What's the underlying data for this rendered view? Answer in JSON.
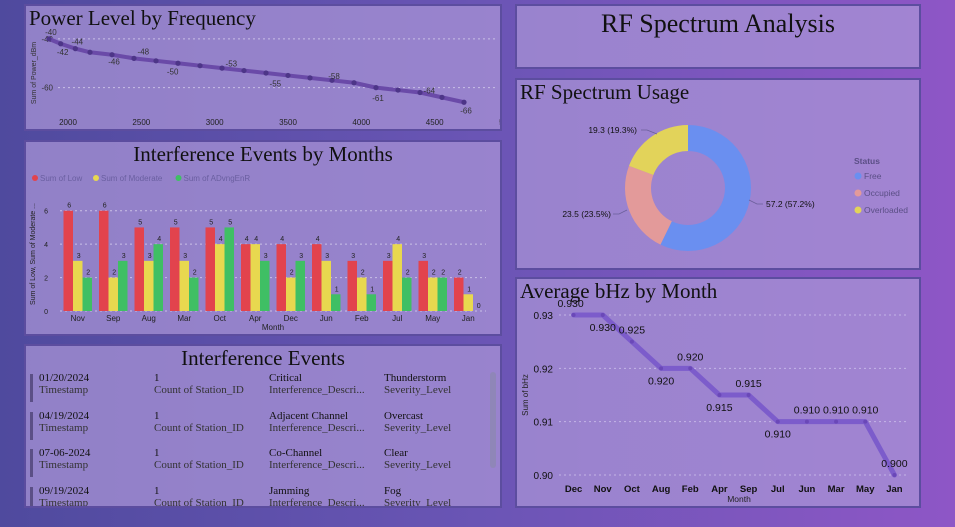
{
  "power_panel": {
    "title": "Power Level by Frequency"
  },
  "interference_chart_panel": {
    "title": "Interference Events by Months"
  },
  "events_panel": {
    "title": "Interference Events",
    "rows": [
      {
        "date": "01/20/2024",
        "count": "1",
        "description": "Critical",
        "severity": "Thunderstorm"
      },
      {
        "date": "04/19/2024",
        "count": "1",
        "description": "Adjacent Channel",
        "severity": "Overcast"
      },
      {
        "date": "07-06-2024",
        "count": "1",
        "description": "Co-Channel",
        "severity": "Clear"
      },
      {
        "date": "09/19/2024",
        "count": "1",
        "description": "Jamming",
        "severity": "Fog"
      }
    ],
    "labels": {
      "date": "Timestamp",
      "count": "Count of Station_ID",
      "description": "Interference_Descri...",
      "severity": "Severity_Level"
    }
  },
  "header_panel": {
    "title": "RF Spectrum Analysis"
  },
  "usage_panel": {
    "title": "RF Spectrum Usage"
  },
  "bhz_panel": {
    "title": "Average bHz by Month"
  },
  "colors": {
    "low": "#e2434d",
    "moderate": "#e8d84f",
    "advanced": "#3fbf64",
    "free": "#6a8ff0",
    "occupied": "#e39a9a",
    "overloaded": "#e2d35a",
    "line": "#6a4aa8"
  },
  "chart_data": [
    {
      "id": "power",
      "type": "line",
      "title": "Power Level by Frequency",
      "ylabel": "Sum of Power_dBm",
      "xlabel": "",
      "xlim": [
        2000,
        5000
      ],
      "ylim": [
        -70,
        -38
      ],
      "xticks": [
        2000,
        2500,
        3000,
        3500,
        4000,
        4500,
        5000
      ],
      "yticks": [
        -40,
        -60
      ],
      "x": [
        1870,
        1950,
        2050,
        2150,
        2300,
        2450,
        2600,
        2750,
        2900,
        3050,
        3200,
        3350,
        3500,
        3650,
        3800,
        3950,
        4100,
        4250,
        4400,
        4550,
        4700
      ],
      "y": [
        -40,
        -42,
        -44,
        -45.5,
        -46.5,
        -48,
        -49,
        -50,
        -51,
        -52,
        -53,
        -54,
        -55,
        -56,
        -57,
        -58,
        -60,
        -61,
        -62,
        -64,
        -66
      ],
      "point_labels": [
        {
          "x": 1870,
          "y": -40,
          "text": "-40"
        },
        {
          "x": 1950,
          "y": -42,
          "text": "-42"
        },
        {
          "x": 2050,
          "y": -44,
          "text": "-44"
        },
        {
          "x": 2300,
          "y": -46,
          "text": "-46"
        },
        {
          "x": 2500,
          "y": -48,
          "text": "-48"
        },
        {
          "x": 2700,
          "y": -50,
          "text": "-50"
        },
        {
          "x": 3100,
          "y": -53,
          "text": "-53"
        },
        {
          "x": 3400,
          "y": -55,
          "text": "-55"
        },
        {
          "x": 3800,
          "y": -58,
          "text": "-58"
        },
        {
          "x": 4100,
          "y": -61,
          "text": "-61"
        },
        {
          "x": 4450,
          "y": -64,
          "text": "-64"
        },
        {
          "x": 4700,
          "y": -66,
          "text": "-66"
        }
      ]
    },
    {
      "id": "interference",
      "type": "bar",
      "title": "Interference Events by Months",
      "xlabel": "Month",
      "ylabel": "Sum of Low, Sum of Moderate ...",
      "ylim": [
        0,
        7
      ],
      "yticks": [
        0,
        2,
        4,
        6
      ],
      "categories": [
        "Nov",
        "Sep",
        "Aug",
        "Mar",
        "Oct",
        "Apr",
        "Dec",
        "Jun",
        "Feb",
        "Jul",
        "May",
        "Jan"
      ],
      "series": [
        {
          "name": "Sum of Low",
          "values": [
            6,
            6,
            5,
            5,
            5,
            4,
            4,
            4,
            3,
            3,
            3,
            2
          ]
        },
        {
          "name": "Sum of Moderate",
          "values": [
            3,
            2,
            3,
            3,
            4,
            4,
            2,
            3,
            2,
            4,
            2,
            1
          ]
        },
        {
          "name": "Sum of ADvngEnR",
          "values": [
            2,
            3,
            4,
            2,
            5,
            3,
            3,
            1,
            1,
            2,
            2,
            0
          ]
        }
      ]
    },
    {
      "id": "usage",
      "type": "pie",
      "title": "RF Spectrum Usage",
      "legend_title": "Status",
      "legend_position": "right",
      "slices": [
        {
          "label": "Free",
          "value": 57.2,
          "text": "57.2 (57.2%)"
        },
        {
          "label": "Occupied",
          "value": 23.5,
          "text": "23.5 (23.5%)"
        },
        {
          "label": "Overloaded",
          "value": 19.3,
          "text": "19.3 (19.3%)"
        }
      ]
    },
    {
      "id": "bhz",
      "type": "line",
      "title": "Average bHz by Month",
      "xlabel": "Month",
      "ylabel": "Sum of bHz",
      "ylim": [
        0.9,
        0.93
      ],
      "yticks": [
        0.9,
        0.91,
        0.92,
        0.93
      ],
      "categories": [
        "Dec",
        "Nov",
        "Oct",
        "Aug",
        "Feb",
        "Apr",
        "Sep",
        "Jul",
        "Jun",
        "Mar",
        "May",
        "Jan"
      ],
      "values": [
        0.93,
        0.93,
        0.925,
        0.92,
        0.92,
        0.915,
        0.915,
        0.91,
        0.91,
        0.91,
        0.91,
        0.9
      ],
      "labels": [
        "0.930",
        "0.930",
        "0.925",
        "0.920",
        "0.920",
        "0.915",
        "0.915",
        "0.910",
        "0.910",
        "0.910",
        "0.910",
        "0.900"
      ]
    }
  ]
}
